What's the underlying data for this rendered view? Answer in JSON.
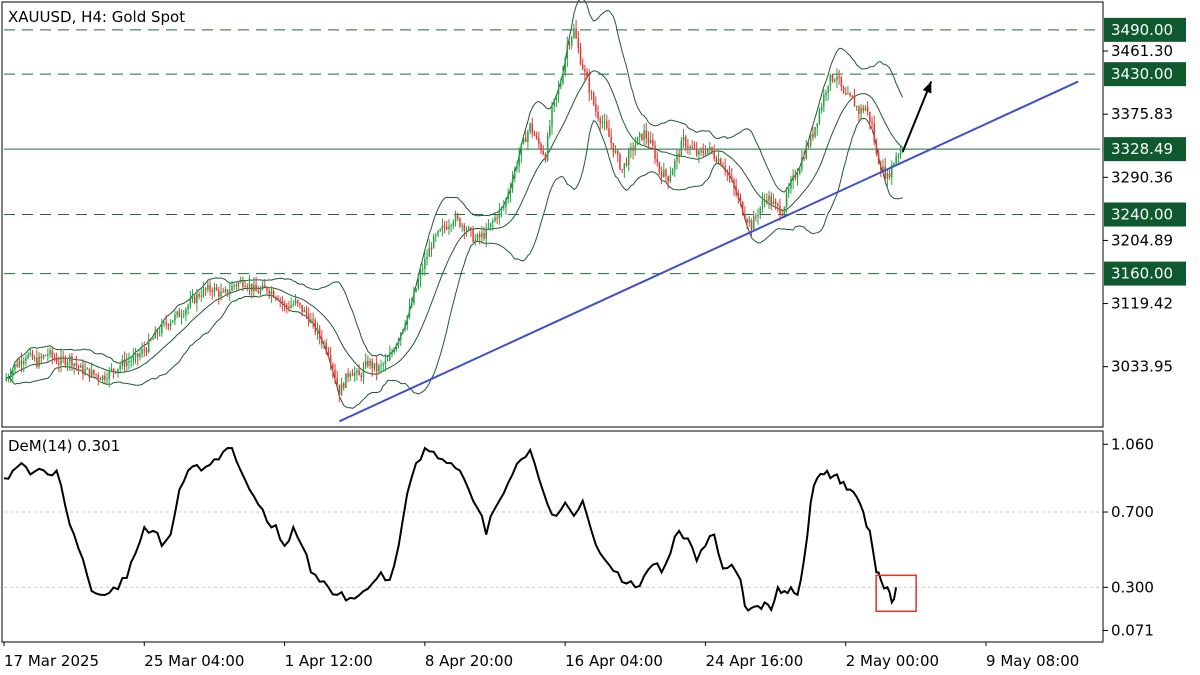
{
  "colors": {
    "up": "#26a243",
    "down": "#e53935",
    "band": "#1d5a32",
    "level_line": "#1f6b38",
    "tag_bg": "#0e5a2e",
    "trendline": "#3f51c4",
    "dem_line": "#000000",
    "grid": "#c8c8c8",
    "frame": "#000000",
    "highlight": "#e53322"
  },
  "chart_data": [
    {
      "type": "candlestick",
      "title": "XAUUSD, H4:  Gold Spot",
      "y_ticks": [
        "3461.30",
        "3375.83",
        "3290.36",
        "3204.89",
        "3119.42",
        "3033.95"
      ],
      "ylim": [
        2955,
        3525
      ],
      "x_tick_labels": [
        "17 Mar 2025",
        "25 Mar 04:00",
        "1 Apr 12:00",
        "8 Apr 20:00",
        "16 Apr 04:00",
        "24 Apr 16:00",
        "2 May 00:00",
        "9 May 08:00"
      ],
      "horizontal_levels": [
        {
          "label": "3490.00",
          "value": 3490.0,
          "style": "dashed"
        },
        {
          "label": "3430.00",
          "value": 3430.0,
          "style": "dashed"
        },
        {
          "label": "3328.49",
          "value": 3328.49,
          "style": "solid"
        },
        {
          "label": "3240.00",
          "value": 3240.0,
          "style": "dashed"
        },
        {
          "label": "3160.00",
          "value": 3160.0,
          "style": "dashed"
        }
      ],
      "close_path": [
        [
          0,
          3015
        ],
        [
          5,
          3035
        ],
        [
          10,
          3050
        ],
        [
          15,
          3040
        ],
        [
          20,
          3052
        ],
        [
          25,
          3040
        ],
        [
          30,
          3045
        ],
        [
          35,
          3030
        ],
        [
          40,
          3025
        ],
        [
          45,
          3020
        ],
        [
          50,
          3030
        ],
        [
          55,
          3040
        ],
        [
          60,
          3045
        ],
        [
          65,
          3060
        ],
        [
          70,
          3080
        ],
        [
          75,
          3095
        ],
        [
          80,
          3105
        ],
        [
          85,
          3120
        ],
        [
          90,
          3135
        ],
        [
          95,
          3140
        ],
        [
          100,
          3130
        ],
        [
          105,
          3145
        ],
        [
          110,
          3150
        ],
        [
          115,
          3135
        ],
        [
          120,
          3140
        ],
        [
          125,
          3130
        ],
        [
          128,
          3115
        ],
        [
          133,
          3120
        ],
        [
          138,
          3105
        ],
        [
          143,
          3080
        ],
        [
          148,
          3055
        ],
        [
          153,
          3000
        ],
        [
          158,
          3030
        ],
        [
          162,
          3020
        ],
        [
          166,
          3040
        ],
        [
          170,
          3030
        ],
        [
          175,
          3040
        ],
        [
          180,
          3075
        ],
        [
          185,
          3110
        ],
        [
          190,
          3160
        ],
        [
          195,
          3200
        ],
        [
          200,
          3220
        ],
        [
          205,
          3235
        ],
        [
          210,
          3225
        ],
        [
          215,
          3205
        ],
        [
          220,
          3215
        ],
        [
          225,
          3240
        ],
        [
          228,
          3250
        ],
        [
          232,
          3290
        ],
        [
          236,
          3330
        ],
        [
          240,
          3360
        ],
        [
          243,
          3340
        ],
        [
          247,
          3320
        ],
        [
          250,
          3380
        ],
        [
          254,
          3420
        ],
        [
          257,
          3470
        ],
        [
          260,
          3490
        ],
        [
          263,
          3450
        ],
        [
          266,
          3420
        ],
        [
          270,
          3380
        ],
        [
          274,
          3360
        ],
        [
          278,
          3330
        ],
        [
          282,
          3300
        ],
        [
          285,
          3320
        ],
        [
          289,
          3340
        ],
        [
          292,
          3350
        ],
        [
          296,
          3330
        ],
        [
          299,
          3300
        ],
        [
          303,
          3290
        ],
        [
          306,
          3310
        ],
        [
          310,
          3340
        ],
        [
          313,
          3330
        ],
        [
          317,
          3320
        ],
        [
          321,
          3330
        ],
        [
          324,
          3320
        ],
        [
          328,
          3310
        ],
        [
          331,
          3290
        ],
        [
          335,
          3260
        ],
        [
          338,
          3240
        ],
        [
          341,
          3225
        ],
        [
          345,
          3250
        ],
        [
          348,
          3265
        ],
        [
          352,
          3250
        ],
        [
          355,
          3245
        ],
        [
          359,
          3280
        ],
        [
          362,
          3300
        ],
        [
          366,
          3330
        ],
        [
          369,
          3350
        ],
        [
          373,
          3390
        ],
        [
          376,
          3420
        ],
        [
          380,
          3430
        ],
        [
          383,
          3400
        ],
        [
          387,
          3395
        ],
        [
          390,
          3380
        ],
        [
          393,
          3385
        ],
        [
          396,
          3360
        ],
        [
          398,
          3320
        ],
        [
          401,
          3300
        ],
        [
          403,
          3290
        ],
        [
          407,
          3320
        ],
        [
          410,
          3330
        ]
      ],
      "trendline": [
        [
          153,
          2960
        ],
        [
          490,
          3420
        ]
      ],
      "arrow": [
        [
          410,
          3325
        ],
        [
          423,
          3420
        ]
      ]
    },
    {
      "type": "line",
      "title": "DeM(14) 0.301",
      "y_ticks": [
        "1.060",
        "0.700",
        "0.300",
        "0.071"
      ],
      "ylim": [
        0.02,
        1.12
      ],
      "values": [
        [
          0,
          0.88
        ],
        [
          4,
          0.92
        ],
        [
          8,
          0.96
        ],
        [
          12,
          0.9
        ],
        [
          16,
          0.93
        ],
        [
          20,
          0.9
        ],
        [
          24,
          0.92
        ],
        [
          28,
          0.73
        ],
        [
          32,
          0.58
        ],
        [
          36,
          0.45
        ],
        [
          40,
          0.28
        ],
        [
          44,
          0.26
        ],
        [
          48,
          0.27
        ],
        [
          52,
          0.29
        ],
        [
          56,
          0.35
        ],
        [
          60,
          0.48
        ],
        [
          64,
          0.62
        ],
        [
          68,
          0.6
        ],
        [
          72,
          0.52
        ],
        [
          76,
          0.58
        ],
        [
          80,
          0.82
        ],
        [
          84,
          0.92
        ],
        [
          88,
          0.95
        ],
        [
          92,
          0.94
        ],
        [
          96,
          0.98
        ],
        [
          100,
          1.02
        ],
        [
          104,
          1.04
        ],
        [
          108,
          0.92
        ],
        [
          112,
          0.82
        ],
        [
          116,
          0.74
        ],
        [
          120,
          0.65
        ],
        [
          124,
          0.63
        ],
        [
          128,
          0.52
        ],
        [
          132,
          0.62
        ],
        [
          136,
          0.52
        ],
        [
          140,
          0.38
        ],
        [
          144,
          0.33
        ],
        [
          148,
          0.3
        ],
        [
          152,
          0.26
        ],
        [
          156,
          0.23
        ],
        [
          160,
          0.24
        ],
        [
          164,
          0.28
        ],
        [
          168,
          0.32
        ],
        [
          172,
          0.38
        ],
        [
          176,
          0.34
        ],
        [
          180,
          0.52
        ],
        [
          184,
          0.8
        ],
        [
          188,
          0.96
        ],
        [
          192,
          1.04
        ],
        [
          196,
          1.02
        ],
        [
          200,
          0.98
        ],
        [
          204,
          0.96
        ],
        [
          208,
          0.92
        ],
        [
          212,
          0.82
        ],
        [
          216,
          0.72
        ],
        [
          220,
          0.58
        ],
        [
          224,
          0.72
        ],
        [
          228,
          0.8
        ],
        [
          232,
          0.9
        ],
        [
          236,
          0.98
        ],
        [
          240,
          1.03
        ],
        [
          244,
          0.88
        ],
        [
          248,
          0.74
        ],
        [
          252,
          0.68
        ],
        [
          256,
          0.75
        ],
        [
          260,
          0.68
        ],
        [
          264,
          0.76
        ],
        [
          268,
          0.6
        ],
        [
          272,
          0.48
        ],
        [
          276,
          0.42
        ],
        [
          280,
          0.38
        ],
        [
          284,
          0.32
        ],
        [
          288,
          0.3
        ],
        [
          292,
          0.36
        ],
        [
          296,
          0.42
        ],
        [
          300,
          0.38
        ],
        [
          304,
          0.48
        ],
        [
          308,
          0.6
        ],
        [
          312,
          0.56
        ],
        [
          316,
          0.44
        ],
        [
          320,
          0.52
        ],
        [
          324,
          0.58
        ],
        [
          328,
          0.4
        ],
        [
          332,
          0.42
        ],
        [
          336,
          0.34
        ],
        [
          338,
          0.2
        ],
        [
          341,
          0.19
        ],
        [
          344,
          0.2
        ],
        [
          347,
          0.22
        ],
        [
          350,
          0.18
        ],
        [
          353,
          0.3
        ],
        [
          356,
          0.28
        ],
        [
          359,
          0.3
        ],
        [
          362,
          0.26
        ],
        [
          365,
          0.45
        ],
        [
          368,
          0.75
        ],
        [
          371,
          0.88
        ],
        [
          374,
          0.9
        ],
        [
          377,
          0.88
        ],
        [
          380,
          0.9
        ],
        [
          383,
          0.86
        ],
        [
          386,
          0.82
        ],
        [
          389,
          0.78
        ],
        [
          392,
          0.7
        ],
        [
          395,
          0.6
        ],
        [
          398,
          0.38
        ],
        [
          400,
          0.34
        ],
        [
          403,
          0.3
        ],
        [
          405,
          0.22
        ],
        [
          407,
          0.3
        ]
      ],
      "highlight_box": "last value"
    }
  ]
}
